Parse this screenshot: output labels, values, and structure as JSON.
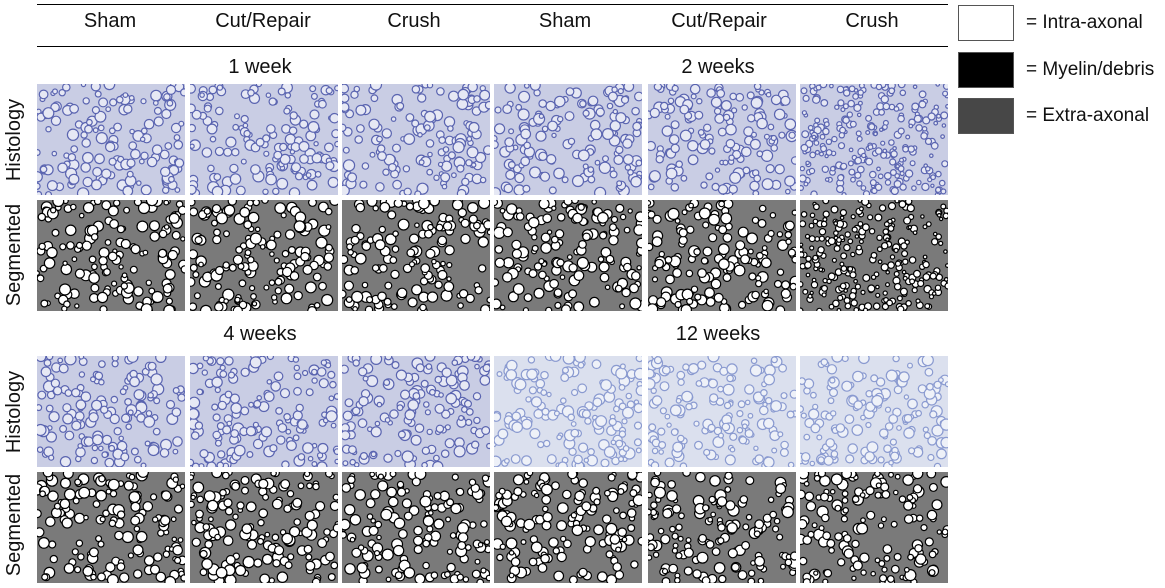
{
  "columns": [
    "Sham",
    "Cut/Repair",
    "Crush",
    "Sham",
    "Cut/Repair",
    "Crush"
  ],
  "periods": [
    "1 week",
    "2 weeks",
    "4 weeks",
    "12 weeks"
  ],
  "row_labels": {
    "histology": "Histology",
    "segmented": "Segmented"
  },
  "legend": [
    {
      "label": "= Intra-axonal",
      "color": "#ffffff"
    },
    {
      "label": "= Myelin/debris",
      "color": "#000000"
    },
    {
      "label": "= Extra-axonal",
      "color": "#474747"
    }
  ],
  "colors": {
    "histo_bg": "#c9cde4",
    "histo_axon": "#5a64b0",
    "histo_bg_pale": "#dbe0ee",
    "histo_axon_pale": "#8a9ad0",
    "seg_bg": "#7a7a7a"
  }
}
